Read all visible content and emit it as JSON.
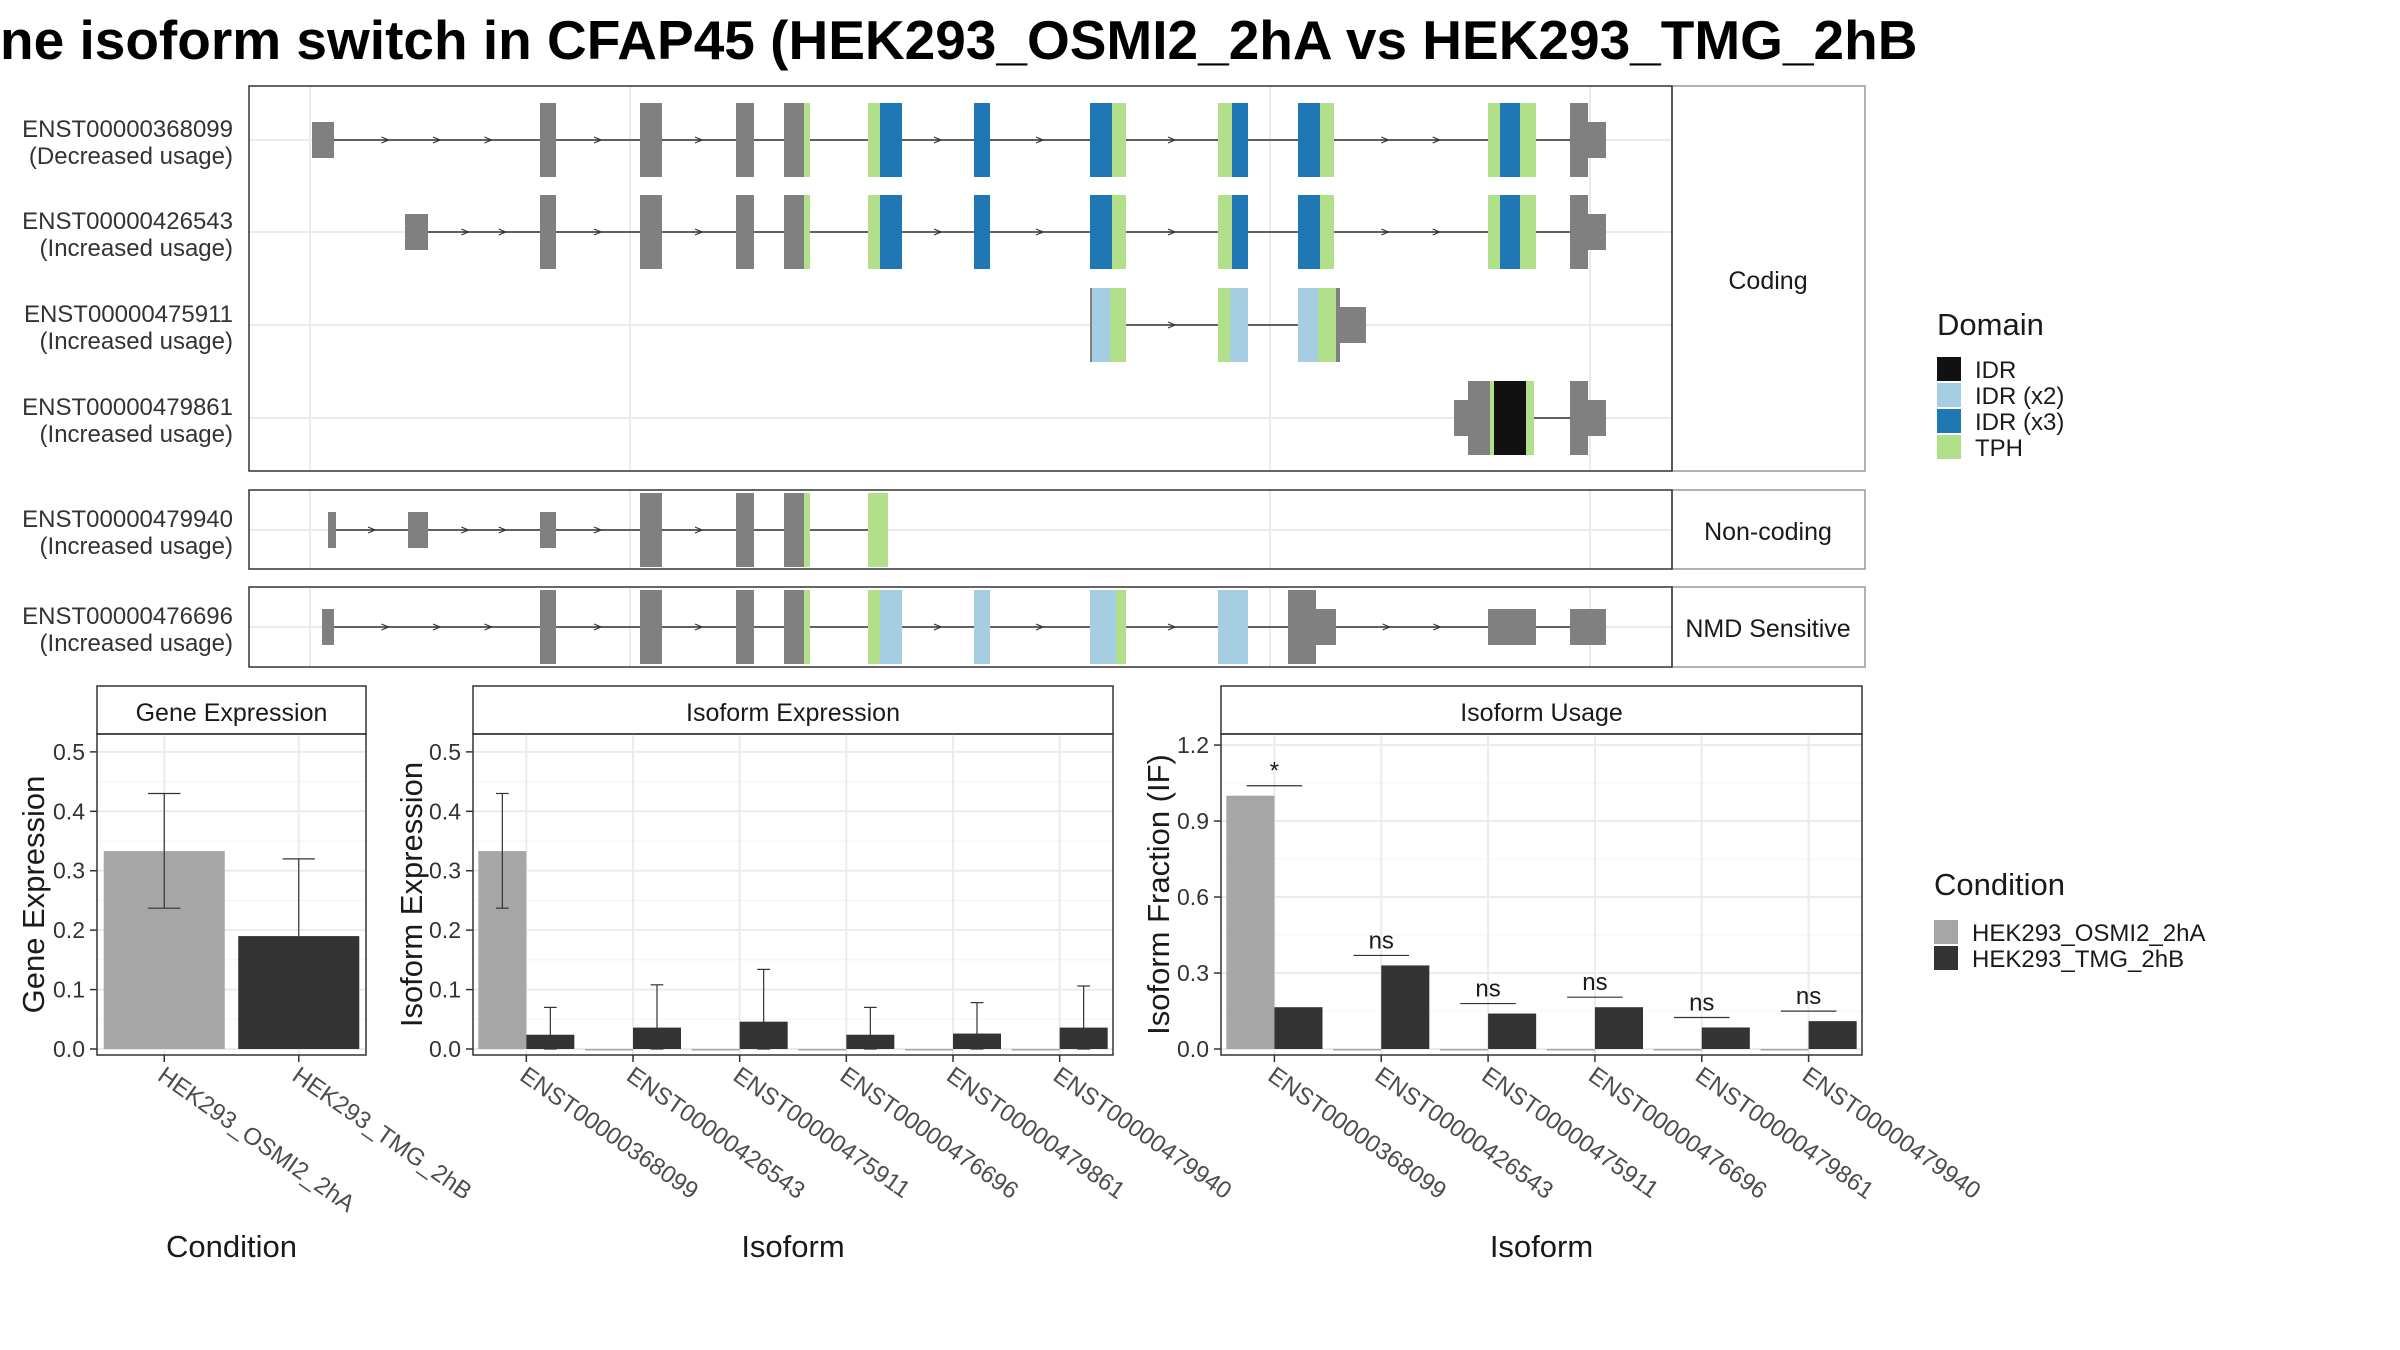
{
  "title": "ne isoform switch in CFAP45 (HEK293_OSMI2_2hA vs HEK293_TMG_2hB",
  "colors": {
    "exon": "#808080",
    "IDR": "#111111",
    "IDR (x2)": "#a6cee3",
    "IDR (x3)": "#1f78b4",
    "TPH": "#b2df8a",
    "cond1": "#a6a6a6",
    "cond2": "#333333"
  },
  "isoform_structure": {
    "panels": [
      {
        "label": "Coding",
        "isoforms": [
          {
            "id": "ENST00000368099",
            "usage": "(Decreased usage)"
          },
          {
            "id": "ENST00000426543",
            "usage": "(Increased usage)"
          },
          {
            "id": "ENST00000475911",
            "usage": "(Increased usage)"
          },
          {
            "id": "ENST00000479861",
            "usage": "(Increased usage)"
          }
        ]
      },
      {
        "label": "Non-coding",
        "isoforms": [
          {
            "id": "ENST00000479940",
            "usage": "(Increased usage)"
          }
        ]
      },
      {
        "label": "NMD Sensitive",
        "isoforms": [
          {
            "id": "ENST00000476696",
            "usage": "(Increased usage)"
          }
        ]
      }
    ],
    "domain_legend": {
      "title": "Domain",
      "items": [
        "IDR",
        "IDR (x2)",
        "IDR (x3)",
        "TPH"
      ]
    }
  },
  "condition_legend": {
    "title": "Condition",
    "items": [
      "HEK293_OSMI2_2hA",
      "HEK293_TMG_2hB"
    ]
  },
  "chart_data": [
    {
      "type": "bar",
      "title": "Gene Expression",
      "xlabel": "Condition",
      "ylabel": "Gene Expression",
      "categories": [
        "HEK293_OSMI2_2hA",
        "HEK293_TMG_2hB"
      ],
      "values": [
        0.333,
        0.19
      ],
      "err_low": [
        0.237,
        0.06
      ],
      "err_high": [
        0.43,
        0.32
      ],
      "ylim": [
        0,
        0.52
      ],
      "yticks": [
        "0.0",
        "0.1",
        "0.2",
        "0.3",
        "0.4",
        "0.5"
      ],
      "grid": true
    },
    {
      "type": "bar",
      "title": "Isoform Expression",
      "xlabel": "Isoform",
      "ylabel": "Isoform Expression",
      "categories": [
        "ENST00000368099",
        "ENST00000426543",
        "ENST00000475911",
        "ENST00000476696",
        "ENST00000479861",
        "ENST00000479940"
      ],
      "series": [
        {
          "name": "HEK293_OSMI2_2hA",
          "values": [
            0.333,
            0,
            0,
            0,
            0,
            0
          ],
          "err_low": [
            0.237,
            0,
            0,
            0,
            0,
            0
          ],
          "err_high": [
            0.43,
            0,
            0,
            0,
            0,
            0
          ]
        },
        {
          "name": "HEK293_TMG_2hB",
          "values": [
            0.024,
            0.036,
            0.046,
            0.024,
            0.026,
            0.036
          ],
          "err_low": [
            0,
            0,
            0,
            0,
            0,
            0
          ],
          "err_high": [
            0.07,
            0.108,
            0.134,
            0.07,
            0.078,
            0.106
          ]
        }
      ],
      "ylim": [
        0,
        0.52
      ],
      "yticks": [
        "0.0",
        "0.1",
        "0.2",
        "0.3",
        "0.4",
        "0.5"
      ],
      "grid": true
    },
    {
      "type": "bar",
      "title": "Isoform Usage",
      "xlabel": "Isoform",
      "ylabel": "Isoform Fraction (IF)",
      "categories": [
        "ENST00000368099",
        "ENST00000426543",
        "ENST00000475911",
        "ENST00000476696",
        "ENST00000479861",
        "ENST00000479940"
      ],
      "series": [
        {
          "name": "HEK293_OSMI2_2hA",
          "values": [
            1.0,
            0,
            0,
            0,
            0,
            0
          ]
        },
        {
          "name": "HEK293_TMG_2hB",
          "values": [
            0.165,
            0.33,
            0.14,
            0.165,
            0.085,
            0.11
          ]
        }
      ],
      "significance": [
        "*",
        "ns",
        "ns",
        "ns",
        "ns",
        "ns"
      ],
      "ylim": [
        0,
        1.22
      ],
      "yticks": [
        "0.0",
        "0.3",
        "0.6",
        "0.9",
        "1.2"
      ],
      "grid": true
    }
  ]
}
